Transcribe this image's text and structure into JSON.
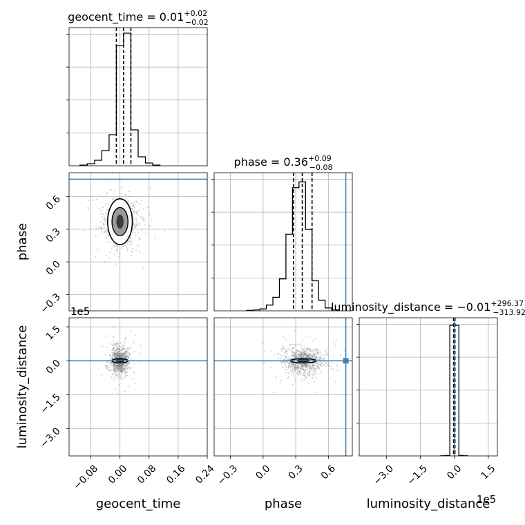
{
  "chart_data": {
    "type": "corner",
    "colors": {
      "truth": "#4682b4",
      "hist": "#000000",
      "quantile": "#000000",
      "samples": "#808080"
    },
    "grid": true,
    "parameters": [
      "geocent_time",
      "phase",
      "luminosity_distance"
    ],
    "axis_labels": {
      "geocent_time": "geocent_time",
      "phase": "phase",
      "luminosity_distance": "luminosity_distance"
    },
    "ranges": {
      "geocent_time": [
        -0.14,
        0.24
      ],
      "phase": [
        -0.45,
        0.82
      ],
      "luminosity_distance": [
        -420000,
        190000
      ]
    },
    "ticks": {
      "geocent_time": [
        -0.08,
        0.0,
        0.08,
        0.16,
        0.24
      ],
      "phase": [
        -0.3,
        0.0,
        0.3,
        0.6
      ],
      "luminosity_distance": [
        -300000,
        -150000,
        0,
        150000
      ]
    },
    "tick_labels": {
      "geocent_time": [
        "−0.08",
        "0.00",
        "0.08",
        "0.16",
        "0.24"
      ],
      "phase": [
        "−0.3",
        "0.0",
        "0.3",
        "0.6"
      ],
      "luminosity_distance": [
        "−3.0",
        "−1.5",
        "0.0",
        "1.5"
      ]
    },
    "offset_label": "1e5",
    "truths": {
      "phase": 0.76,
      "luminosity_distance": 0
    },
    "titles": {
      "geocent_time": {
        "text": "geocent_time = 0.01",
        "plus": "+0.02",
        "minus": "−0.02"
      },
      "phase": {
        "text": "phase = 0.36",
        "plus": "+0.09",
        "minus": "−0.08"
      },
      "luminosity_distance": {
        "text": "luminosity_distance = −0.01",
        "plus": "+296.37",
        "minus": "−313.92"
      }
    },
    "quantiles": {
      "geocent_time": [
        -0.01,
        0.01,
        0.03
      ],
      "phase": [
        0.28,
        0.36,
        0.45
      ],
      "luminosity_distance": [
        -3300,
        -100,
        2900
      ]
    },
    "histograms": {
      "geocent_time": {
        "edges": [
          -0.11,
          -0.09,
          -0.07,
          -0.05,
          -0.03,
          -0.01,
          0.01,
          0.03,
          0.05,
          0.07,
          0.09,
          0.11
        ],
        "counts": [
          1,
          3,
          8,
          22,
          45,
          174,
          192,
          52,
          13,
          4,
          1
        ]
      },
      "phase": {
        "edges": [
          -0.15,
          -0.09,
          -0.03,
          0.03,
          0.09,
          0.15,
          0.21,
          0.27,
          0.33,
          0.39,
          0.45,
          0.51,
          0.57,
          0.63,
          0.69
        ],
        "counts": [
          1,
          2,
          4,
          12,
          28,
          66,
          158,
          254,
          266,
          168,
          62,
          22,
          6,
          2
        ]
      },
      "luminosity_distance": {
        "edges": [
          -60000,
          -40000,
          -20000,
          0,
          20000,
          40000,
          60000
        ],
        "counts": [
          1,
          2,
          680,
          680,
          2,
          1
        ]
      }
    },
    "histogram_ymax": {
      "geocent_time": 200,
      "phase": 285,
      "luminosity_distance": 720
    },
    "contours": {
      "geocent_time|phase": {
        "center": [
          0.0,
          0.37
        ],
        "sx": [
          0.022,
          0.034
        ],
        "sy": [
          0.13,
          0.21
        ]
      },
      "geocent_time|luminosity_distance": {
        "center": [
          0.0,
          0
        ],
        "sx": [
          0.012,
          0.022
        ],
        "sy": [
          4000,
          9000
        ]
      },
      "phase|luminosity_distance": {
        "center": [
          0.37,
          0
        ],
        "sx": [
          0.06,
          0.12
        ],
        "sy": [
          4000,
          9000
        ]
      }
    },
    "scatter_spread": {
      "geocent_time|phase": {
        "sx": 0.025,
        "sy": 0.1
      },
      "geocent_time|luminosity_distance": {
        "sx": 0.012,
        "sy": 30000
      },
      "phase|luminosity_distance": {
        "sx": 0.09,
        "sy": 30000
      }
    }
  }
}
